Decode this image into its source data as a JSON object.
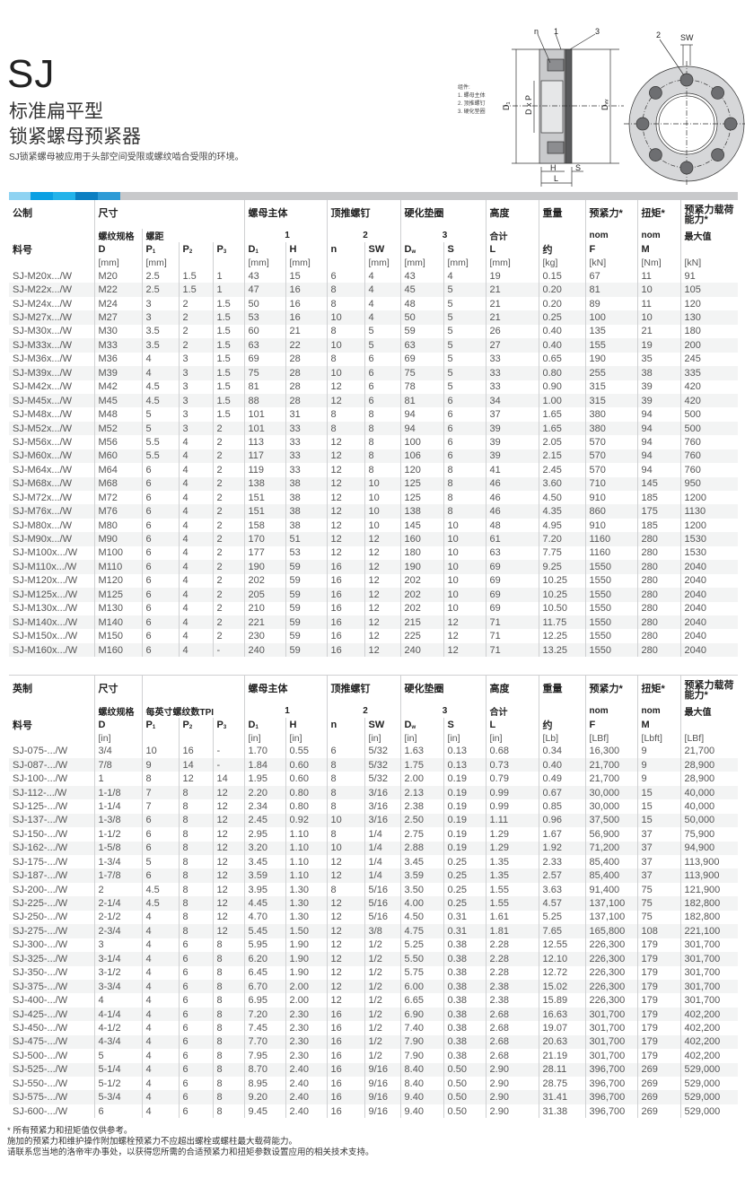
{
  "header": {
    "title": "SJ",
    "subtitle_line1": "标准扁平型",
    "subtitle_line2": "锁紧螺母预紧器",
    "description": "SJ锁紧螺母被应用于头部空间受限或螺纹啮合受限的环境。"
  },
  "components": {
    "heading": "组件:",
    "items": [
      "1. 螺母主体",
      "2. 顶推螺钉",
      "3. 硬化垫圈"
    ]
  },
  "diagram": {
    "labels": {
      "n": "n",
      "one": "1",
      "three": "3",
      "two": "2",
      "sw": "SW",
      "d1": "D₁",
      "dxp": "D x P",
      "dw": "Dᵥᵥ",
      "h": "H",
      "s": "S",
      "l": "L"
    }
  },
  "colors": {
    "stripe": [
      "#8fd3f2",
      "#0aa0e3",
      "#23b3ea",
      "#0c7fc2",
      "#2e9bd6"
    ],
    "stripe_bar": "#c8c9cb",
    "row_band": "#f3f4f4"
  },
  "metric": {
    "row1": {
      "label": "公制",
      "size": "尺寸",
      "body": "螺母主体",
      "screw": "顶推螺钉",
      "washer": "硬化垫圈",
      "height": "高度",
      "weight": "重量",
      "preload": "预紧力*",
      "torque": "扭矩*",
      "capacity": "预紧力载荷能力*"
    },
    "row2": {
      "thread": "螺纹规格",
      "pitch": "螺距",
      "c1": "1",
      "c2": "2",
      "c3": "3",
      "total": "合计",
      "nom1": "nom",
      "nom2": "nom",
      "max": "最大值"
    },
    "row3": {
      "part": "料号",
      "D": "D",
      "P1": [
        "P",
        "1"
      ],
      "P2": [
        "P",
        "2"
      ],
      "P3": [
        "P",
        "3"
      ],
      "D1": [
        "D",
        "1"
      ],
      "H": "H",
      "n": "n",
      "SW": "SW",
      "Dw": [
        "D",
        "w"
      ],
      "S": "S",
      "L": "L",
      "approx": "约",
      "F": "F",
      "M": "M"
    },
    "units": [
      "[mm]",
      "[mm]",
      "",
      "",
      "[mm]",
      "[mm]",
      "",
      "[mm]",
      "[mm]",
      "[mm]",
      "[mm]",
      "[kg]",
      "[kN]",
      "[Nm]",
      "[kN]"
    ],
    "rows": [
      [
        "SJ-M20x.../W",
        "M20",
        "2.5",
        "1.5",
        "1",
        "43",
        "15",
        "6",
        "4",
        "43",
        "4",
        "19",
        "0.15",
        "67",
        "11",
        "91"
      ],
      [
        "SJ-M22x.../W",
        "M22",
        "2.5",
        "1.5",
        "1",
        "47",
        "16",
        "8",
        "4",
        "45",
        "5",
        "21",
        "0.20",
        "81",
        "10",
        "105"
      ],
      [
        "SJ-M24x.../W",
        "M24",
        "3",
        "2",
        "1.5",
        "50",
        "16",
        "8",
        "4",
        "48",
        "5",
        "21",
        "0.20",
        "89",
        "11",
        "120"
      ],
      [
        "SJ-M27x.../W",
        "M27",
        "3",
        "2",
        "1.5",
        "53",
        "16",
        "10",
        "4",
        "50",
        "5",
        "21",
        "0.25",
        "100",
        "10",
        "130"
      ],
      [
        "SJ-M30x.../W",
        "M30",
        "3.5",
        "2",
        "1.5",
        "60",
        "21",
        "8",
        "5",
        "59",
        "5",
        "26",
        "0.40",
        "135",
        "21",
        "180"
      ],
      [
        "SJ-M33x.../W",
        "M33",
        "3.5",
        "2",
        "1.5",
        "63",
        "22",
        "10",
        "5",
        "63",
        "5",
        "27",
        "0.40",
        "155",
        "19",
        "200"
      ],
      [
        "SJ-M36x.../W",
        "M36",
        "4",
        "3",
        "1.5",
        "69",
        "28",
        "8",
        "6",
        "69",
        "5",
        "33",
        "0.65",
        "190",
        "35",
        "245"
      ],
      [
        "SJ-M39x.../W",
        "M39",
        "4",
        "3",
        "1.5",
        "75",
        "28",
        "10",
        "6",
        "75",
        "5",
        "33",
        "0.80",
        "255",
        "38",
        "335"
      ],
      [
        "SJ-M42x.../W",
        "M42",
        "4.5",
        "3",
        "1.5",
        "81",
        "28",
        "12",
        "6",
        "78",
        "5",
        "33",
        "0.90",
        "315",
        "39",
        "420"
      ],
      [
        "SJ-M45x.../W",
        "M45",
        "4.5",
        "3",
        "1.5",
        "88",
        "28",
        "12",
        "6",
        "81",
        "6",
        "34",
        "1.00",
        "315",
        "39",
        "420"
      ],
      [
        "SJ-M48x.../W",
        "M48",
        "5",
        "3",
        "1.5",
        "101",
        "31",
        "8",
        "8",
        "94",
        "6",
        "37",
        "1.65",
        "380",
        "94",
        "500"
      ],
      [
        "SJ-M52x.../W",
        "M52",
        "5",
        "3",
        "2",
        "101",
        "33",
        "8",
        "8",
        "94",
        "6",
        "39",
        "1.65",
        "380",
        "94",
        "500"
      ],
      [
        "SJ-M56x.../W",
        "M56",
        "5.5",
        "4",
        "2",
        "113",
        "33",
        "12",
        "8",
        "100",
        "6",
        "39",
        "2.05",
        "570",
        "94",
        "760"
      ],
      [
        "SJ-M60x.../W",
        "M60",
        "5.5",
        "4",
        "2",
        "117",
        "33",
        "12",
        "8",
        "106",
        "6",
        "39",
        "2.15",
        "570",
        "94",
        "760"
      ],
      [
        "SJ-M64x.../W",
        "M64",
        "6",
        "4",
        "2",
        "119",
        "33",
        "12",
        "8",
        "120",
        "8",
        "41",
        "2.45",
        "570",
        "94",
        "760"
      ],
      [
        "SJ-M68x.../W",
        "M68",
        "6",
        "4",
        "2",
        "138",
        "38",
        "12",
        "10",
        "125",
        "8",
        "46",
        "3.60",
        "710",
        "145",
        "950"
      ],
      [
        "SJ-M72x.../W",
        "M72",
        "6",
        "4",
        "2",
        "151",
        "38",
        "12",
        "10",
        "125",
        "8",
        "46",
        "4.50",
        "910",
        "185",
        "1200"
      ],
      [
        "SJ-M76x.../W",
        "M76",
        "6",
        "4",
        "2",
        "151",
        "38",
        "12",
        "10",
        "138",
        "8",
        "46",
        "4.35",
        "860",
        "175",
        "1130"
      ],
      [
        "SJ-M80x.../W",
        "M80",
        "6",
        "4",
        "2",
        "158",
        "38",
        "12",
        "10",
        "145",
        "10",
        "48",
        "4.95",
        "910",
        "185",
        "1200"
      ],
      [
        "SJ-M90x.../W",
        "M90",
        "6",
        "4",
        "2",
        "170",
        "51",
        "12",
        "12",
        "160",
        "10",
        "61",
        "7.20",
        "1160",
        "280",
        "1530"
      ],
      [
        "SJ-M100x.../W",
        "M100",
        "6",
        "4",
        "2",
        "177",
        "53",
        "12",
        "12",
        "180",
        "10",
        "63",
        "7.75",
        "1160",
        "280",
        "1530"
      ],
      [
        "SJ-M110x.../W",
        "M110",
        "6",
        "4",
        "2",
        "190",
        "59",
        "16",
        "12",
        "190",
        "10",
        "69",
        "9.25",
        "1550",
        "280",
        "2040"
      ],
      [
        "SJ-M120x.../W",
        "M120",
        "6",
        "4",
        "2",
        "202",
        "59",
        "16",
        "12",
        "202",
        "10",
        "69",
        "10.25",
        "1550",
        "280",
        "2040"
      ],
      [
        "SJ-M125x.../W",
        "M125",
        "6",
        "4",
        "2",
        "205",
        "59",
        "16",
        "12",
        "202",
        "10",
        "69",
        "10.25",
        "1550",
        "280",
        "2040"
      ],
      [
        "SJ-M130x.../W",
        "M130",
        "6",
        "4",
        "2",
        "210",
        "59",
        "16",
        "12",
        "202",
        "10",
        "69",
        "10.50",
        "1550",
        "280",
        "2040"
      ],
      [
        "SJ-M140x.../W",
        "M140",
        "6",
        "4",
        "2",
        "221",
        "59",
        "16",
        "12",
        "215",
        "12",
        "71",
        "11.75",
        "1550",
        "280",
        "2040"
      ],
      [
        "SJ-M150x.../W",
        "M150",
        "6",
        "4",
        "2",
        "230",
        "59",
        "16",
        "12",
        "225",
        "12",
        "71",
        "12.25",
        "1550",
        "280",
        "2040"
      ],
      [
        "SJ-M160x.../W",
        "M160",
        "6",
        "4",
        "-",
        "240",
        "59",
        "16",
        "12",
        "240",
        "12",
        "71",
        "13.25",
        "1550",
        "280",
        "2040"
      ]
    ]
  },
  "imperial": {
    "row1": {
      "label": "英制",
      "size": "尺寸",
      "body": "螺母主体",
      "screw": "顶推螺钉",
      "washer": "硬化垫圈",
      "height": "高度",
      "weight": "重量",
      "preload": "预紧力*",
      "torque": "扭矩*",
      "capacity": "预紧力载荷能力*"
    },
    "row2": {
      "thread": "螺纹规格",
      "pitch": "每英寸螺纹数TPI",
      "c1": "1",
      "c2": "2",
      "c3": "3",
      "total": "合计",
      "nom1": "nom",
      "nom2": "nom",
      "max": "最大值"
    },
    "row3": {
      "part": "料号",
      "D": "D",
      "P1": [
        "P",
        "1"
      ],
      "P2": [
        "P",
        "2"
      ],
      "P3": [
        "P",
        "3"
      ],
      "D1": [
        "D",
        "1"
      ],
      "H": "H",
      "n": "n",
      "SW": "SW",
      "Dw": [
        "D",
        "w"
      ],
      "S": "S",
      "L": "L",
      "approx": "约",
      "F": "F",
      "M": "M"
    },
    "units": [
      "[in]",
      "",
      "",
      "",
      "[in]",
      "[in]",
      "",
      "[in]",
      "[in]",
      "[in]",
      "[in]",
      "[Lb]",
      "[LBf]",
      "[Lbft]",
      "[LBf]"
    ],
    "rows": [
      [
        "SJ-075-.../W",
        "3/4",
        "10",
        "16",
        "-",
        "1.70",
        "0.55",
        "6",
        "5/32",
        "1.63",
        "0.13",
        "0.68",
        "0.34",
        "16,300",
        "9",
        "21,700"
      ],
      [
        "SJ-087-.../W",
        "7/8",
        "9",
        "14",
        "-",
        "1.84",
        "0.60",
        "8",
        "5/32",
        "1.75",
        "0.13",
        "0.73",
        "0.40",
        "21,700",
        "9",
        "28,900"
      ],
      [
        "SJ-100-.../W",
        "1",
        "8",
        "12",
        "14",
        "1.95",
        "0.60",
        "8",
        "5/32",
        "2.00",
        "0.19",
        "0.79",
        "0.49",
        "21,700",
        "9",
        "28,900"
      ],
      [
        "SJ-112-.../W",
        "1-1/8",
        "7",
        "8",
        "12",
        "2.20",
        "0.80",
        "8",
        "3/16",
        "2.13",
        "0.19",
        "0.99",
        "0.67",
        "30,000",
        "15",
        "40,000"
      ],
      [
        "SJ-125-.../W",
        "1-1/4",
        "7",
        "8",
        "12",
        "2.34",
        "0.80",
        "8",
        "3/16",
        "2.38",
        "0.19",
        "0.99",
        "0.85",
        "30,000",
        "15",
        "40,000"
      ],
      [
        "SJ-137-.../W",
        "1-3/8",
        "6",
        "8",
        "12",
        "2.45",
        "0.92",
        "10",
        "3/16",
        "2.50",
        "0.19",
        "1.11",
        "0.96",
        "37,500",
        "15",
        "50,000"
      ],
      [
        "SJ-150-.../W",
        "1-1/2",
        "6",
        "8",
        "12",
        "2.95",
        "1.10",
        "8",
        "1/4",
        "2.75",
        "0.19",
        "1.29",
        "1.67",
        "56,900",
        "37",
        "75,900"
      ],
      [
        "SJ-162-.../W",
        "1-5/8",
        "6",
        "8",
        "12",
        "3.20",
        "1.10",
        "10",
        "1/4",
        "2.88",
        "0.19",
        "1.29",
        "1.92",
        "71,200",
        "37",
        "94,900"
      ],
      [
        "SJ-175-.../W",
        "1-3/4",
        "5",
        "8",
        "12",
        "3.45",
        "1.10",
        "12",
        "1/4",
        "3.45",
        "0.25",
        "1.35",
        "2.33",
        "85,400",
        "37",
        "113,900"
      ],
      [
        "SJ-187-.../W",
        "1-7/8",
        "6",
        "8",
        "12",
        "3.59",
        "1.10",
        "12",
        "1/4",
        "3.59",
        "0.25",
        "1.35",
        "2.57",
        "85,400",
        "37",
        "113,900"
      ],
      [
        "SJ-200-.../W",
        "2",
        "4.5",
        "8",
        "12",
        "3.95",
        "1.30",
        "8",
        "5/16",
        "3.50",
        "0.25",
        "1.55",
        "3.63",
        "91,400",
        "75",
        "121,900"
      ],
      [
        "SJ-225-.../W",
        "2-1/4",
        "4.5",
        "8",
        "12",
        "4.45",
        "1.30",
        "12",
        "5/16",
        "4.00",
        "0.25",
        "1.55",
        "4.57",
        "137,100",
        "75",
        "182,800"
      ],
      [
        "SJ-250-.../W",
        "2-1/2",
        "4",
        "8",
        "12",
        "4.70",
        "1.30",
        "12",
        "5/16",
        "4.50",
        "0.31",
        "1.61",
        "5.25",
        "137,100",
        "75",
        "182,800"
      ],
      [
        "SJ-275-.../W",
        "2-3/4",
        "4",
        "8",
        "12",
        "5.45",
        "1.50",
        "12",
        "3/8",
        "4.75",
        "0.31",
        "1.81",
        "7.65",
        "165,800",
        "108",
        "221,100"
      ],
      [
        "SJ-300-.../W",
        "3",
        "4",
        "6",
        "8",
        "5.95",
        "1.90",
        "12",
        "1/2",
        "5.25",
        "0.38",
        "2.28",
        "12.55",
        "226,300",
        "179",
        "301,700"
      ],
      [
        "SJ-325-.../W",
        "3-1/4",
        "4",
        "6",
        "8",
        "6.20",
        "1.90",
        "12",
        "1/2",
        "5.50",
        "0.38",
        "2.28",
        "12.10",
        "226,300",
        "179",
        "301,700"
      ],
      [
        "SJ-350-.../W",
        "3-1/2",
        "4",
        "6",
        "8",
        "6.45",
        "1.90",
        "12",
        "1/2",
        "5.75",
        "0.38",
        "2.28",
        "12.72",
        "226,300",
        "179",
        "301,700"
      ],
      [
        "SJ-375-.../W",
        "3-3/4",
        "4",
        "6",
        "8",
        "6.70",
        "2.00",
        "12",
        "1/2",
        "6.00",
        "0.38",
        "2.38",
        "15.02",
        "226,300",
        "179",
        "301,700"
      ],
      [
        "SJ-400-.../W",
        "4",
        "4",
        "6",
        "8",
        "6.95",
        "2.00",
        "12",
        "1/2",
        "6.65",
        "0.38",
        "2.38",
        "15.89",
        "226,300",
        "179",
        "301,700"
      ],
      [
        "SJ-425-.../W",
        "4-1/4",
        "4",
        "6",
        "8",
        "7.20",
        "2.30",
        "16",
        "1/2",
        "6.90",
        "0.38",
        "2.68",
        "16.63",
        "301,700",
        "179",
        "402,200"
      ],
      [
        "SJ-450-.../W",
        "4-1/2",
        "4",
        "6",
        "8",
        "7.45",
        "2.30",
        "16",
        "1/2",
        "7.40",
        "0.38",
        "2.68",
        "19.07",
        "301,700",
        "179",
        "402,200"
      ],
      [
        "SJ-475-.../W",
        "4-3/4",
        "4",
        "6",
        "8",
        "7.70",
        "2.30",
        "16",
        "1/2",
        "7.90",
        "0.38",
        "2.68",
        "20.63",
        "301,700",
        "179",
        "402,200"
      ],
      [
        "SJ-500-.../W",
        "5",
        "4",
        "6",
        "8",
        "7.95",
        "2.30",
        "16",
        "1/2",
        "7.90",
        "0.38",
        "2.68",
        "21.19",
        "301,700",
        "179",
        "402,200"
      ],
      [
        "SJ-525-.../W",
        "5-1/4",
        "4",
        "6",
        "8",
        "8.70",
        "2.40",
        "16",
        "9/16",
        "8.40",
        "0.50",
        "2.90",
        "28.11",
        "396,700",
        "269",
        "529,000"
      ],
      [
        "SJ-550-.../W",
        "5-1/2",
        "4",
        "6",
        "8",
        "8.95",
        "2.40",
        "16",
        "9/16",
        "8.40",
        "0.50",
        "2.90",
        "28.75",
        "396,700",
        "269",
        "529,000"
      ],
      [
        "SJ-575-.../W",
        "5-3/4",
        "4",
        "6",
        "8",
        "9.20",
        "2.40",
        "16",
        "9/16",
        "9.40",
        "0.50",
        "2.90",
        "31.41",
        "396,700",
        "269",
        "529,000"
      ],
      [
        "SJ-600-.../W",
        "6",
        "4",
        "6",
        "8",
        "9.45",
        "2.40",
        "16",
        "9/16",
        "9.40",
        "0.50",
        "2.90",
        "31.38",
        "396,700",
        "269",
        "529,000"
      ]
    ]
  },
  "notes": [
    "* 所有预紧力和扭矩值仅供参考。",
    "施加的预紧力和维护操作附加螺栓预紧力不应超出螺栓或螺柱最大载荷能力。",
    "请联系您当地的洛帝牢办事处，以获得您所需的合适预紧力和扭矩参数设置应用的相关技术支持。"
  ]
}
